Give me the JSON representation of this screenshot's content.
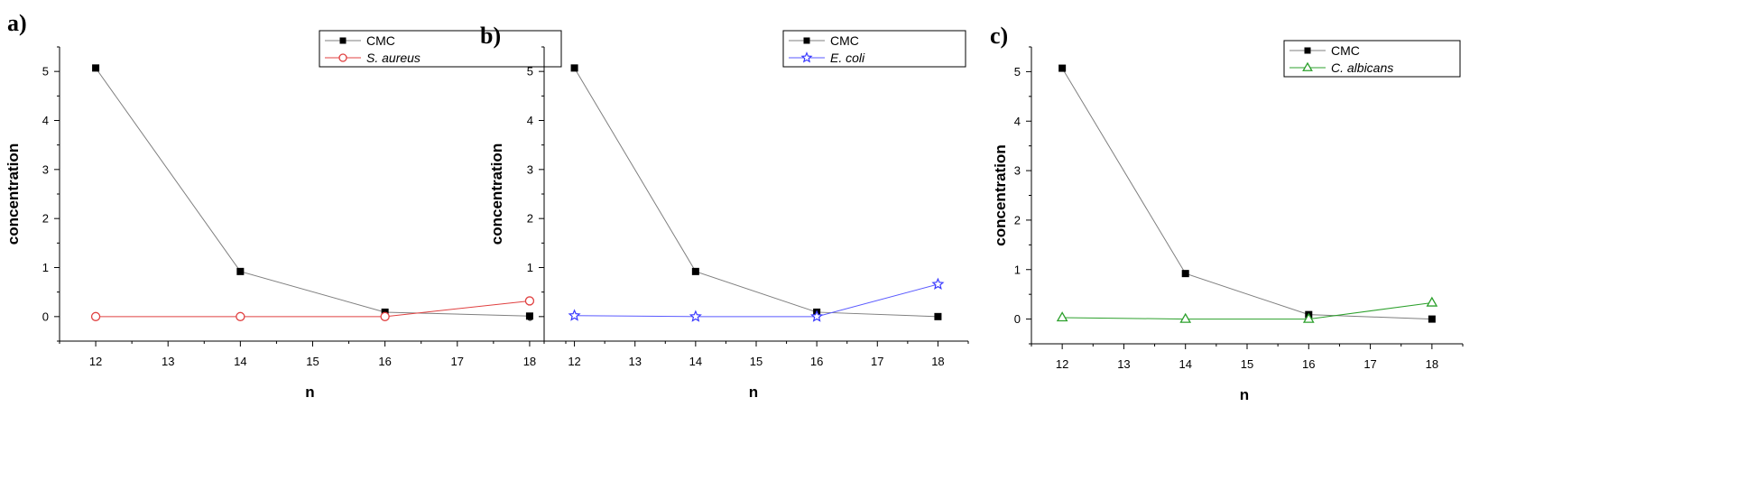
{
  "chart_data": [
    {
      "type": "line",
      "panel_label": "a)",
      "xlabel": "n",
      "ylabel": "concentration",
      "x": [
        12,
        14,
        16,
        18
      ],
      "xticks": [
        12,
        13,
        14,
        15,
        16,
        17,
        18
      ],
      "yticks": [
        0,
        1,
        2,
        3,
        4,
        5
      ],
      "xlim": [
        11.5,
        18.5
      ],
      "ylim": [
        -0.5,
        5.5
      ],
      "grid": false,
      "legend_position": "top-right",
      "series": [
        {
          "name": "CMC",
          "values": [
            5.07,
            0.92,
            0.09,
            0.01
          ],
          "color": "#000000",
          "marker": "filled-square",
          "line_color": "#7f7f7f"
        },
        {
          "name": "S. aureus",
          "values": [
            0.0,
            0.0,
            0.0,
            0.32
          ],
          "color": "#e04040",
          "marker": "open-circle",
          "line_color": "#e04040",
          "italic": true
        }
      ]
    },
    {
      "type": "line",
      "panel_label": "b)",
      "xlabel": "n",
      "ylabel": "concentration",
      "x": [
        12,
        14,
        16,
        18
      ],
      "xticks": [
        12,
        13,
        14,
        15,
        16,
        17,
        18
      ],
      "yticks": [
        0,
        1,
        2,
        3,
        4,
        5
      ],
      "xlim": [
        11.5,
        18.5
      ],
      "ylim": [
        -0.5,
        5.5
      ],
      "grid": false,
      "legend_position": "top-right",
      "series": [
        {
          "name": "CMC",
          "values": [
            5.07,
            0.92,
            0.09,
            0.0
          ],
          "color": "#000000",
          "marker": "filled-square",
          "line_color": "#7f7f7f"
        },
        {
          "name": "E. coli",
          "values": [
            0.02,
            0.0,
            0.0,
            0.66
          ],
          "color": "#3a3aff",
          "marker": "open-star",
          "line_color": "#5a5aff",
          "italic": true
        }
      ]
    },
    {
      "type": "line",
      "panel_label": "c)",
      "xlabel": "n",
      "ylabel": "concentration",
      "x": [
        12,
        14,
        16,
        18
      ],
      "xticks": [
        12,
        13,
        14,
        15,
        16,
        17,
        18
      ],
      "yticks": [
        0,
        1,
        2,
        3,
        4,
        5
      ],
      "xlim": [
        11.5,
        18.5
      ],
      "ylim": [
        -0.5,
        5.5
      ],
      "grid": false,
      "legend_position": "top-right",
      "series": [
        {
          "name": "CMC",
          "values": [
            5.07,
            0.92,
            0.09,
            0.0
          ],
          "color": "#000000",
          "marker": "filled-square",
          "line_color": "#7f7f7f"
        },
        {
          "name": "C. albicans",
          "values": [
            0.03,
            0.0,
            0.0,
            0.33
          ],
          "color": "#2ca02c",
          "marker": "open-triangle",
          "line_color": "#2ca02c",
          "italic": true
        }
      ]
    }
  ]
}
